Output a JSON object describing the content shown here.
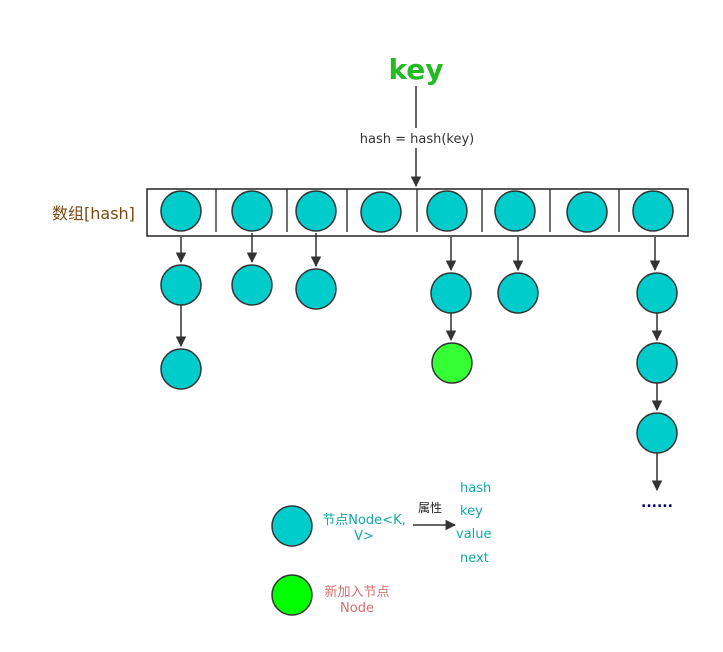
{
  "key_label": "key",
  "hash_formula": "hash = hash(key)",
  "array_label": "数组[hash]",
  "ellipsis": "......",
  "legend": {
    "node_label_line1": "节点Node<K,",
    "node_label_line2": "V>",
    "attributes_label": "属性",
    "fields": [
      "hash",
      "key",
      "value",
      "next"
    ],
    "new_node_line1": "新加入节点",
    "new_node_line2": "Node"
  },
  "colors": {
    "node": "#00cccc",
    "new_node": "#33ff33",
    "legend_new_node": "#00ff00",
    "key_text": "#22bb22",
    "array_label": "#7a4a10",
    "legend_text": "#13a8a8",
    "new_node_text": "#d27070",
    "ellipsis": "#000080"
  }
}
